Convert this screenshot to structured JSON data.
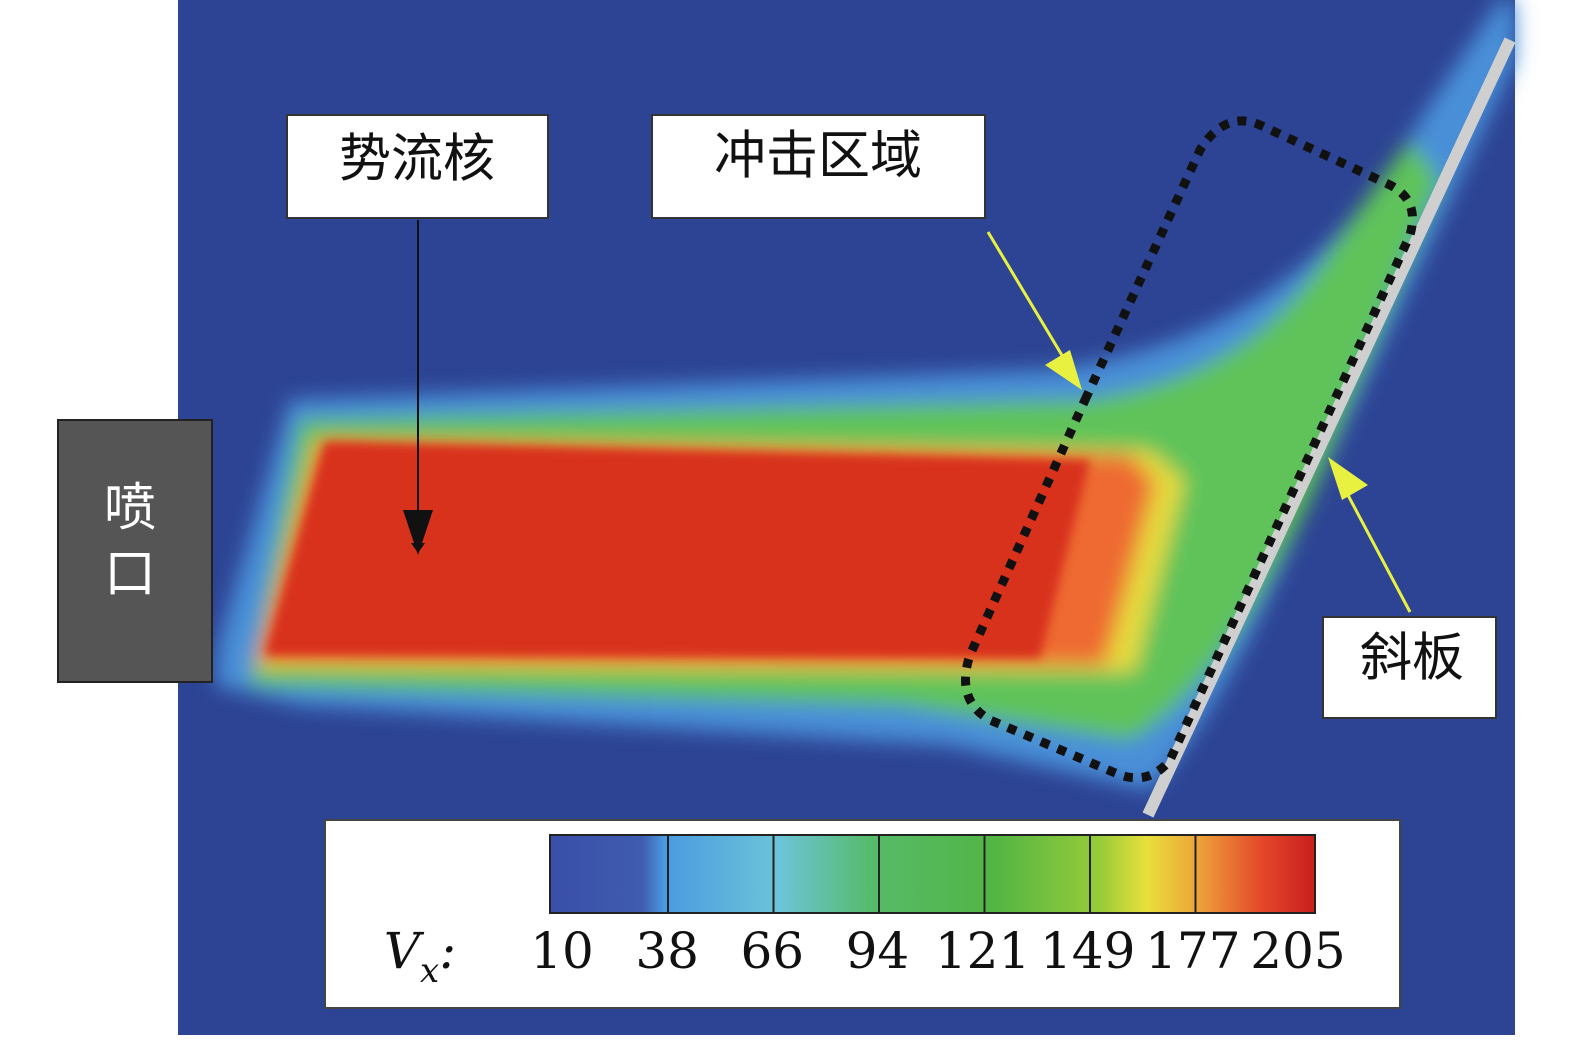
{
  "labels": {
    "core": "势流核",
    "impact": "冲击区域",
    "plate": "斜板",
    "nozzle_top": "喷",
    "nozzle_bottom": "口"
  },
  "colorbar": {
    "label": "V",
    "label_sub": "x",
    "separator": ":",
    "ticks": [
      10,
      38,
      66,
      94,
      121,
      149,
      177,
      205
    ]
  }
}
